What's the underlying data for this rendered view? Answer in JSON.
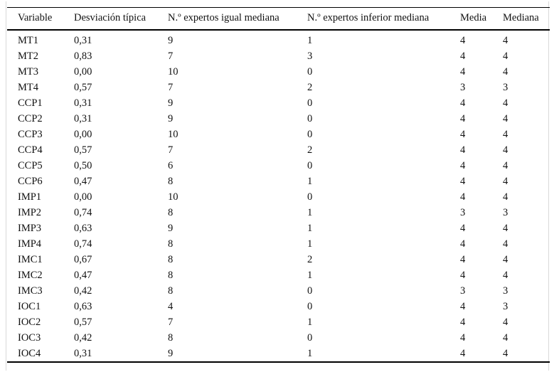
{
  "table": {
    "columns": [
      "Variable",
      "Desviación típica",
      "N.º expertos igual mediana",
      "N.º expertos inferior mediana",
      "Media",
      "Mediana"
    ],
    "rows": [
      [
        "MT1",
        "0,31",
        "9",
        "1",
        "4",
        "4"
      ],
      [
        "MT2",
        "0,83",
        "7",
        "3",
        "4",
        "4"
      ],
      [
        "MT3",
        "0,00",
        "10",
        "0",
        "4",
        "4"
      ],
      [
        "MT4",
        "0,57",
        "7",
        "2",
        "3",
        "3"
      ],
      [
        "CCP1",
        "0,31",
        "9",
        "0",
        "4",
        "4"
      ],
      [
        "CCP2",
        "0,31",
        "9",
        "0",
        "4",
        "4"
      ],
      [
        "CCP3",
        "0,00",
        "10",
        "0",
        "4",
        "4"
      ],
      [
        "CCP4",
        "0,57",
        "7",
        "2",
        "4",
        "4"
      ],
      [
        "CCP5",
        "0,50",
        "6",
        "0",
        "4",
        "4"
      ],
      [
        "CCP6",
        "0,47",
        "8",
        "1",
        "4",
        "4"
      ],
      [
        "IMP1",
        "0,00",
        "10",
        "0",
        "4",
        "4"
      ],
      [
        "IMP2",
        "0,74",
        "8",
        "1",
        "3",
        "3"
      ],
      [
        "IMP3",
        "0,63",
        "9",
        "1",
        "4",
        "4"
      ],
      [
        "IMP4",
        "0,74",
        "8",
        "1",
        "4",
        "4"
      ],
      [
        "IMC1",
        "0,67",
        "8",
        "2",
        "4",
        "4"
      ],
      [
        "IMC2",
        "0,47",
        "8",
        "1",
        "4",
        "4"
      ],
      [
        "IMC3",
        "0,42",
        "8",
        "0",
        "3",
        "3"
      ],
      [
        "IOC1",
        "0,63",
        "4",
        "0",
        "4",
        "3"
      ],
      [
        "IOC2",
        "0,57",
        "7",
        "1",
        "4",
        "4"
      ],
      [
        "IOC3",
        "0,42",
        "8",
        "0",
        "4",
        "4"
      ],
      [
        "IOC4",
        "0,31",
        "9",
        "1",
        "4",
        "4"
      ]
    ],
    "colors": {
      "rule": "#000000",
      "frame": "#d9d9d9",
      "text": "#111111",
      "background": "#ffffff"
    }
  }
}
